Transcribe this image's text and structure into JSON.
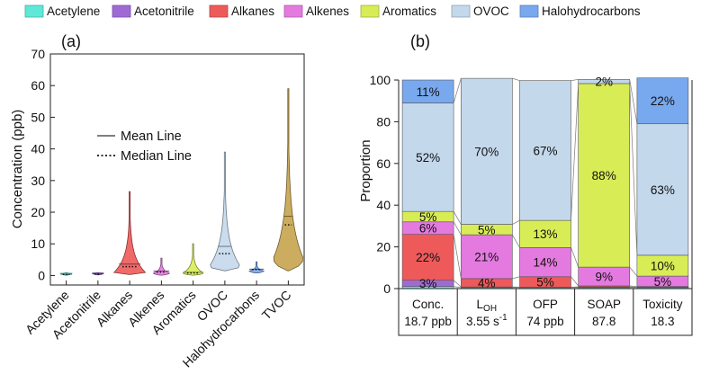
{
  "legend": [
    {
      "label": "Acetylene",
      "color": "#5ee8d8"
    },
    {
      "label": "Acetonitrile",
      "color": "#a06ad6"
    },
    {
      "label": "Alkanes",
      "color": "#ee5a5a"
    },
    {
      "label": "Alkenes",
      "color": "#e47ae0"
    },
    {
      "label": "Aromatics",
      "color": "#d8ec56"
    },
    {
      "label": "OVOC",
      "color": "#c4d8ec"
    },
    {
      "label": "Halohydrocarbons",
      "color": "#78a8ee"
    }
  ],
  "panel_a": {
    "tag": "(a)",
    "ylabel": "Concentration (ppb)",
    "mean_label": "Mean Line",
    "median_label": "Median Line",
    "tvoc_color": "#c7a44e"
  },
  "panel_b": {
    "tag": "(b)",
    "ylabel": "Proportion"
  },
  "chart_data": [
    {
      "type": "violin",
      "ylim": [
        -3,
        70
      ],
      "yticks": [
        0,
        10,
        20,
        30,
        40,
        50,
        60,
        70
      ],
      "categories": [
        "Acetylene",
        "Acetonitrile",
        "Alkanes",
        "Alkenes",
        "Aromatics",
        "OVOC",
        "Halohydrocarbons",
        "TVOC"
      ],
      "series": [
        {
          "min": 0.1,
          "max": 0.9,
          "mean": 0.4,
          "median": 0.35
        },
        {
          "min": 0.2,
          "max": 0.9,
          "mean": 0.5,
          "median": 0.45
        },
        {
          "min": 0.3,
          "max": 26.5,
          "mean": 3.6,
          "median": 2.8
        },
        {
          "min": 0.1,
          "max": 5.5,
          "mean": 1.4,
          "median": 1.1
        },
        {
          "min": 0.1,
          "max": 10.0,
          "mean": 1.0,
          "median": 0.8
        },
        {
          "min": 1.5,
          "max": 39.0,
          "mean": 9.2,
          "median": 6.9
        },
        {
          "min": 0.8,
          "max": 4.3,
          "mean": 2.0,
          "median": 1.9
        },
        {
          "min": 1.5,
          "max": 59.0,
          "mean": 18.7,
          "median": 16.0
        }
      ]
    },
    {
      "type": "stacked_bar",
      "ylim": [
        0,
        100
      ],
      "yticks": [
        0,
        20,
        40,
        60,
        80,
        100
      ],
      "categories": [
        {
          "line1": "Conc.",
          "line2": "18.7 ppb"
        },
        {
          "line1": "L",
          "sub": "OH",
          "line2": "3.55 s",
          "sup": "-1"
        },
        {
          "line1": "OFP",
          "line2": "74 ppb"
        },
        {
          "line1": "SOAP",
          "line2": "87.8"
        },
        {
          "line1": "Toxicity",
          "line2": "18.3"
        }
      ],
      "series": [
        {
          "name": "Acetylene",
          "values": [
            1,
            0.5,
            0.5,
            0.5,
            0.5
          ]
        },
        {
          "name": "Acetonitrile",
          "values": [
            3,
            0.3,
            0.2,
            0.3,
            0.2
          ]
        },
        {
          "name": "Alkanes",
          "values": [
            22,
            4,
            5,
            0.5,
            0.3
          ]
        },
        {
          "name": "Alkenes",
          "values": [
            6,
            21,
            14,
            9,
            5
          ]
        },
        {
          "name": "Aromatics",
          "values": [
            5,
            5,
            13,
            88,
            10
          ]
        },
        {
          "name": "OVOC",
          "values": [
            52,
            70,
            67,
            2,
            63
          ]
        },
        {
          "name": "Halohydrocarbons",
          "values": [
            11,
            0,
            0,
            0,
            22
          ]
        }
      ],
      "labels": [
        [
          "",
          "3%",
          "22%",
          "6%",
          "5%",
          "52%",
          "11%"
        ],
        [
          "",
          "",
          "4%",
          "21%",
          "5%",
          "70%",
          ""
        ],
        [
          "",
          "",
          "5%",
          "14%",
          "13%",
          "67%",
          ""
        ],
        [
          "",
          "",
          "",
          "9%",
          "88%",
          "2%",
          ""
        ],
        [
          "",
          "",
          "",
          "5%",
          "10%",
          "63%",
          "22%"
        ]
      ]
    }
  ]
}
